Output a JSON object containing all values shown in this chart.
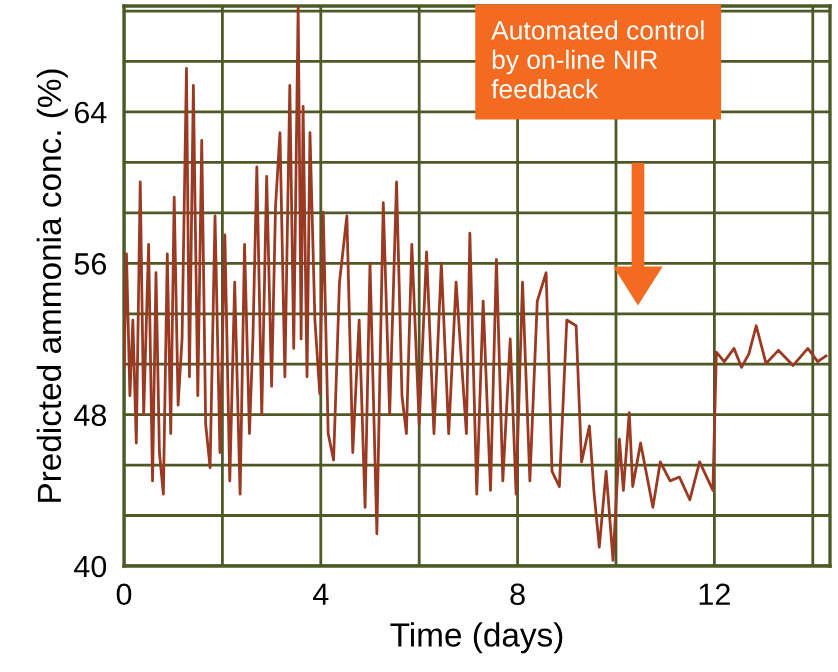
{
  "chart_data": {
    "type": "line",
    "xlabel": "Time (days)",
    "ylabel": "Predicted ammonia conc. (%)",
    "xlim": [
      0,
      14.35
    ],
    "ylim": [
      40,
      69.6
    ],
    "xticks": [
      0,
      {
        "value": 2,
        "label": null
      },
      4,
      {
        "value": 6,
        "label": null
      },
      8,
      {
        "value": 10,
        "label": null
      },
      12,
      {
        "value": 14,
        "label": null
      }
    ],
    "yticks": [
      40,
      {
        "value": 42.67,
        "label": null
      },
      {
        "value": 45.33,
        "label": null
      },
      48,
      {
        "value": 50.67,
        "label": null
      },
      {
        "value": 53.33,
        "label": null
      },
      56,
      {
        "value": 58.67,
        "label": null
      },
      {
        "value": 61.33,
        "label": null
      },
      64,
      {
        "value": 66.67,
        "label": null
      },
      {
        "value": 69.33,
        "label": null
      }
    ],
    "grid": true,
    "marker": "none",
    "line_style": "solid",
    "annotations": [
      "Automated control\nby on-line NIR\nfeedback"
    ],
    "series": [
      {
        "color": "#9b3a22",
        "x": [
          0,
          0.05,
          0.12,
          0.18,
          0.25,
          0.33,
          0.4,
          0.5,
          0.58,
          0.65,
          0.72,
          0.8,
          0.88,
          0.95,
          1.02,
          1.1,
          1.18,
          1.27,
          1.33,
          1.41,
          1.5,
          1.58,
          1.66,
          1.75,
          1.85,
          1.95,
          2.05,
          2.15,
          2.25,
          2.36,
          2.45,
          2.55,
          2.62,
          2.7,
          2.8,
          2.9,
          3.0,
          3.08,
          3.17,
          3.27,
          3.37,
          3.45,
          3.54,
          3.6,
          3.64,
          3.72,
          3.78,
          3.88,
          3.98,
          4.05,
          4.15,
          4.26,
          4.38,
          4.53,
          4.65,
          4.78,
          4.9,
          5.0,
          5.14,
          5.2,
          5.27,
          5.4,
          5.54,
          5.65,
          5.74,
          5.85,
          6.0,
          6.15,
          6.3,
          6.45,
          6.6,
          6.75,
          6.96,
          7.03,
          7.17,
          7.3,
          7.45,
          7.57,
          7.7,
          7.85,
          7.97,
          8.1,
          8.25,
          8.4,
          8.58,
          8.7,
          8.85,
          9.0,
          9.19,
          9.3,
          9.46,
          9.55,
          9.66,
          9.8,
          9.94,
          10.07,
          10.15,
          10.27,
          10.34,
          10.5,
          10.75,
          10.9,
          11.1,
          11.29,
          11.5,
          11.7,
          11.97,
          12.04,
          12.2,
          12.4,
          12.55,
          12.7,
          12.85,
          13.05,
          13.3,
          13.6,
          13.9,
          14.1,
          14.27
        ],
        "values": [
          50.5,
          56.5,
          49,
          53,
          46.5,
          60.3,
          48,
          57,
          44.5,
          55.5,
          46,
          43.8,
          56.5,
          47,
          59.5,
          48.5,
          52,
          66.3,
          50,
          65.4,
          49,
          62.5,
          47.5,
          45.2,
          58.5,
          46,
          57.5,
          44.5,
          55,
          43.8,
          57,
          47,
          52,
          61.1,
          48,
          60.6,
          49.5,
          59,
          62.9,
          50,
          65.4,
          51.5,
          69.6,
          52,
          64.3,
          50,
          62.9,
          53,
          49.1,
          58.7,
          47,
          45.6,
          55,
          58.5,
          46,
          53,
          43.1,
          56,
          41.7,
          50,
          59.2,
          48,
          60.3,
          49,
          47,
          57,
          47.5,
          56.6,
          47,
          56,
          47,
          55,
          47,
          57.6,
          43.8,
          54,
          44,
          56.2,
          44.5,
          52,
          43.8,
          55,
          44.5,
          54,
          55.5,
          45,
          44.2,
          53,
          52.7,
          45.5,
          47.4,
          44,
          41,
          45,
          40.3,
          46.7,
          44,
          48.1,
          44.2,
          46.5,
          43.1,
          45.5,
          44.5,
          44.7,
          43.5,
          45.5,
          44,
          51.3,
          50.8,
          51.5,
          50.5,
          51.2,
          52.7,
          50.7,
          51.4,
          50.6,
          51.5,
          50.8,
          51.1
        ]
      }
    ]
  }
}
